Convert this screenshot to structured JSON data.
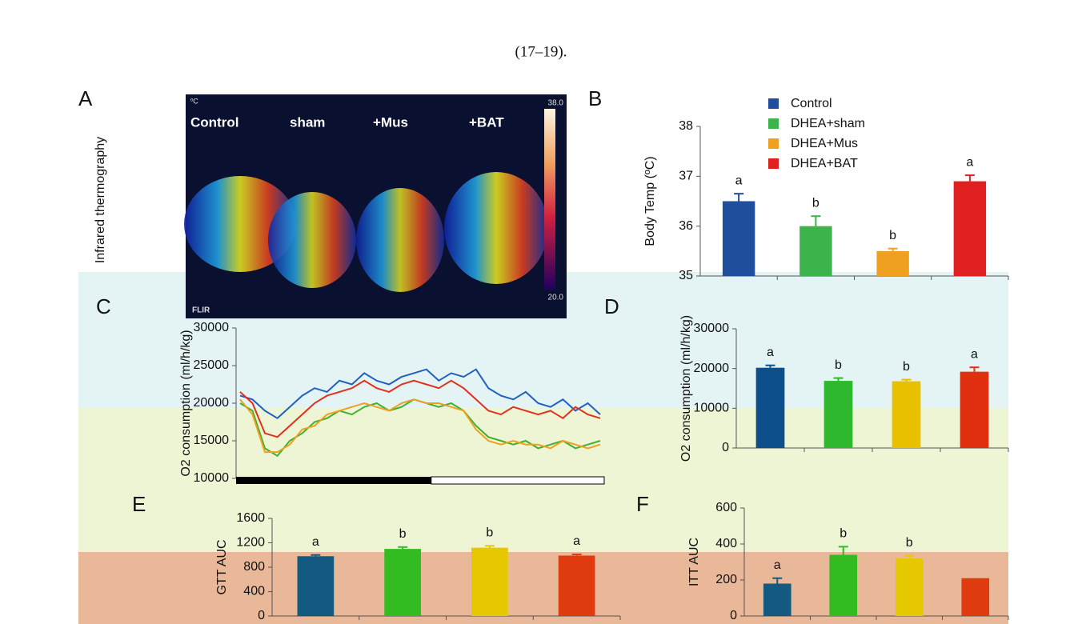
{
  "caption_fragment": "(17–19).",
  "thermography": {
    "panel": "A",
    "y_label": "Infrared thermography",
    "labels": [
      "Control",
      "sham",
      "+Mus",
      "+BAT"
    ],
    "unit": "ºC",
    "scale_max": "38.0",
    "scale_min": "20.0",
    "brand": "FLIR"
  },
  "chart_data": [
    {
      "type": "bar",
      "panel": "B",
      "y_label": "Body Temp (ºC)",
      "legend_labels": [
        "Control",
        "DHEA+sham",
        "DHEA+Mus",
        "DHEA+BAT"
      ],
      "values": [
        36.5,
        36.0,
        35.5,
        36.9
      ],
      "errors": [
        0.15,
        0.2,
        0.05,
        0.12
      ],
      "annotations": [
        "a",
        "b",
        "b",
        "a"
      ],
      "colors": [
        "#1f4e9c",
        "#3cb44b",
        "#f0a020",
        "#e02020"
      ],
      "ylim": [
        35,
        38
      ],
      "yticks": [
        35,
        36,
        37,
        38
      ]
    },
    {
      "type": "line",
      "panel": "C",
      "y_label": "O2 consumption (ml/h/kg)",
      "ylim": [
        10000,
        30000
      ],
      "yticks": [
        10000,
        15000,
        20000,
        25000,
        30000
      ],
      "series": [
        {
          "color": "#2060c0",
          "values": [
            21000,
            20500,
            19000,
            18000,
            19500,
            21000,
            22000,
            21500,
            23000,
            22500,
            24000,
            23000,
            22500,
            23500,
            24000,
            24500,
            23000,
            24000,
            23500,
            24500,
            22000,
            21000,
            20500,
            21500,
            20000,
            19500,
            20500,
            19000,
            20000,
            18500
          ]
        },
        {
          "color": "#40b030",
          "values": [
            20000,
            19000,
            14000,
            13000,
            15000,
            16000,
            17500,
            18000,
            19000,
            18500,
            19500,
            20000,
            19000,
            19500,
            20500,
            20000,
            19500,
            20000,
            19000,
            17000,
            15500,
            15000,
            14500,
            15000,
            14000,
            14500,
            15000,
            14000,
            14500,
            15000
          ]
        },
        {
          "color": "#f0a020",
          "values": [
            20500,
            18500,
            13500,
            13500,
            14500,
            16500,
            17000,
            18500,
            19000,
            19500,
            20000,
            19500,
            19000,
            20000,
            20500,
            20000,
            20000,
            19500,
            19000,
            16500,
            15000,
            14500,
            15000,
            14500,
            14500,
            14000,
            15000,
            14500,
            14000,
            14500
          ]
        },
        {
          "color": "#e03020",
          "values": [
            21500,
            20000,
            16000,
            15500,
            17000,
            18500,
            20000,
            21000,
            21500,
            22000,
            23000,
            22000,
            21500,
            22500,
            23000,
            22500,
            22000,
            23000,
            22000,
            20500,
            19000,
            18500,
            19500,
            19000,
            18500,
            19000,
            18000,
            19500,
            18500,
            18000
          ]
        }
      ]
    },
    {
      "type": "bar",
      "panel": "D",
      "y_label": "O2 consumption (ml/h/kg)",
      "values": [
        20200,
        16900,
        16800,
        19200
      ],
      "errors": [
        600,
        700,
        400,
        1100
      ],
      "annotations": [
        "a",
        "b",
        "b",
        "a"
      ],
      "colors": [
        "#0d4f8b",
        "#2db82d",
        "#e8c000",
        "#e03010"
      ],
      "ylim": [
        0,
        30000
      ],
      "yticks": [
        0,
        10000,
        20000,
        30000
      ]
    },
    {
      "type": "bar",
      "panel": "E",
      "y_label": "GTT AUC",
      "values": [
        980,
        1100,
        1120,
        990
      ],
      "errors": [
        20,
        30,
        30,
        20
      ],
      "annotations": [
        "a",
        "b",
        "b",
        "a"
      ],
      "colors": [
        "#145a80",
        "#33bb22",
        "#e6c800",
        "#e03a10"
      ],
      "ylim": [
        0,
        1600
      ],
      "yticks": [
        0,
        400,
        800,
        1200,
        1600
      ]
    },
    {
      "type": "bar",
      "panel": "F",
      "y_label": "ITT AUC",
      "values": [
        180,
        340,
        320,
        210
      ],
      "errors": [
        30,
        45,
        15,
        null
      ],
      "annotations": [
        "a",
        "b",
        "b",
        null
      ],
      "colors": [
        "#145a80",
        "#33bb22",
        "#e6c800",
        "#e03a10"
      ],
      "ylim": [
        0,
        600
      ],
      "yticks": [
        0,
        200,
        400,
        600
      ]
    }
  ]
}
